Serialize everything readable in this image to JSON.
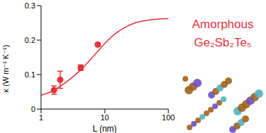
{
  "chart_data": {
    "type": "scatter",
    "x_label": "L (nm)",
    "y_label": "κ (W m⁻¹ K⁻¹)",
    "annotations": [
      "Amorphous",
      "Ge₂Sb₂Te₅"
    ],
    "annotation_color": "#e8313a",
    "log": "x",
    "xlim": [
      1,
      100
    ],
    "xticks": [
      1,
      10,
      100
    ],
    "ylim": [
      0,
      0.3
    ],
    "yticks": [
      0,
      0.1,
      0.2,
      0.3
    ],
    "series": [
      {
        "type": "scatter",
        "color": "#e8313a",
        "marker": "circle",
        "x": [
          1.6,
          2.0,
          4.2,
          7.8
        ],
        "values": [
          0.055,
          0.085,
          0.12,
          0.187
        ],
        "error": [
          0.012,
          0.025,
          0.008,
          0.005
        ]
      },
      {
        "type": "line",
        "color": "#e8313a",
        "line_style": "solid",
        "x": [
          1,
          1.5,
          2,
          3,
          4,
          5,
          7,
          10,
          15,
          20,
          30,
          50,
          100
        ],
        "values": [
          0.04,
          0.052,
          0.066,
          0.09,
          0.11,
          0.128,
          0.158,
          0.19,
          0.22,
          0.235,
          0.25,
          0.258,
          0.262
        ]
      }
    ]
  }
}
